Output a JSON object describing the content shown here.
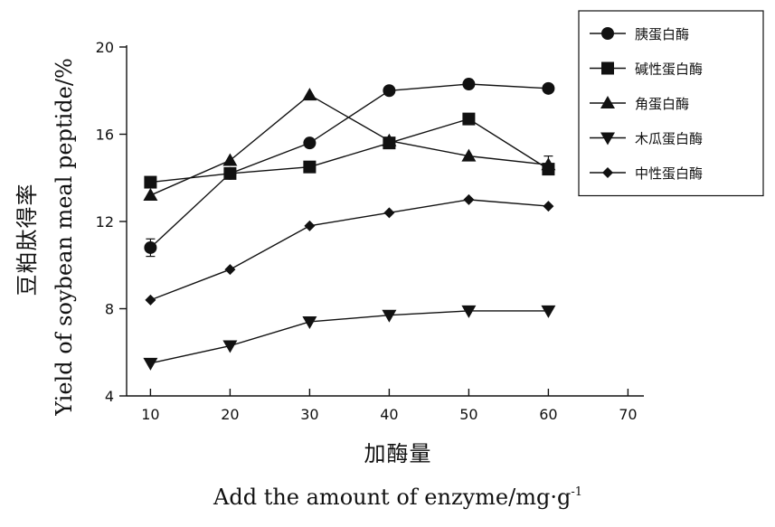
{
  "chart_data": {
    "type": "line",
    "title": "",
    "xlabel_cn": "加酶量",
    "xlabel": "Add the amount of enzyme/mg·g",
    "xlabel_sup": "-1",
    "ylabel_cn": "豆粕肽得率",
    "ylabel": "Yield of soybean meal peptide/%",
    "xlim": [
      7,
      72
    ],
    "ylim": [
      4,
      20
    ],
    "x_ticks": [
      10,
      20,
      30,
      40,
      50,
      60,
      70
    ],
    "y_ticks": [
      4,
      8,
      12,
      16,
      20
    ],
    "x": [
      10,
      20,
      30,
      40,
      50,
      60
    ],
    "grid": false,
    "legend_position": "top-right",
    "series": [
      {
        "name": "胰蛋白酶",
        "marker": "circle",
        "values": [
          10.8,
          14.2,
          15.6,
          18.0,
          18.3,
          18.1
        ],
        "error": [
          0.4,
          0,
          0,
          0,
          0,
          0
        ]
      },
      {
        "name": "碱性蛋白酶",
        "marker": "square",
        "values": [
          13.8,
          14.2,
          14.5,
          15.6,
          16.7,
          14.4
        ],
        "error": [
          0,
          0,
          0,
          0,
          0,
          0
        ]
      },
      {
        "name": "角蛋白酶",
        "marker": "triangle-up",
        "values": [
          13.2,
          14.8,
          17.8,
          15.7,
          15.0,
          14.6
        ],
        "error": [
          0,
          0,
          0,
          0,
          0,
          0.4
        ]
      },
      {
        "name": "木瓜蛋白酶",
        "marker": "triangle-down",
        "values": [
          5.5,
          6.3,
          7.4,
          7.7,
          7.9,
          7.9
        ],
        "error": [
          0,
          0,
          0,
          0,
          0,
          0
        ]
      },
      {
        "name": "中性蛋白酶",
        "marker": "diamond",
        "values": [
          8.4,
          9.8,
          11.8,
          12.4,
          13.0,
          12.7
        ],
        "error": [
          0,
          0,
          0,
          0,
          0,
          0
        ]
      }
    ]
  }
}
